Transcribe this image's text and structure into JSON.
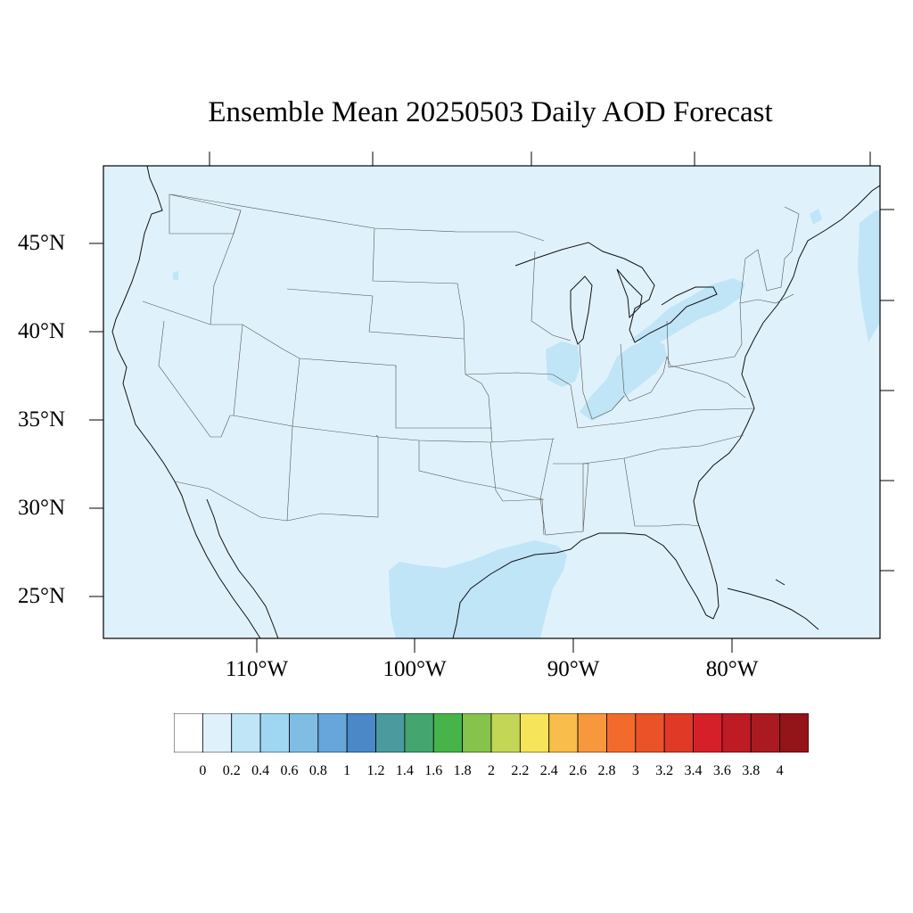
{
  "title": "Ensemble Mean 20250503 Daily AOD Forecast",
  "map": {
    "region": "Continental United States",
    "lon_range": [
      -119,
      -70
    ],
    "lat_range": [
      22.7,
      49.3
    ],
    "lat_ticks": [
      {
        "value": 45,
        "label": "45°N"
      },
      {
        "value": 40,
        "label": "40°N"
      },
      {
        "value": 35,
        "label": "35°N"
      },
      {
        "value": 30,
        "label": "30°N"
      },
      {
        "value": 25,
        "label": "25°N"
      }
    ],
    "lon_ticks": [
      {
        "value": -110,
        "label": "110°W"
      },
      {
        "value": -100,
        "label": "100°W"
      },
      {
        "value": -90,
        "label": "90°W"
      },
      {
        "value": -80,
        "label": "80°W"
      }
    ],
    "background_fill": "#dff2fb",
    "enhanced_fill": "#bfe5f7"
  },
  "colorbar": {
    "colors": [
      "#ffffff",
      "#dff2fb",
      "#bfe5f7",
      "#9fd7f2",
      "#80bde5",
      "#66a6da",
      "#4a88c7",
      "#4b9a9e",
      "#45a56f",
      "#47b44a",
      "#86c34c",
      "#c4d655",
      "#f6e45a",
      "#f8bd4a",
      "#f7983d",
      "#f36b2c",
      "#ea5228",
      "#e03a26",
      "#d62029",
      "#be1b24",
      "#aa1a20",
      "#931519"
    ],
    "labels": [
      "0",
      "0.2",
      "0.4",
      "0.6",
      "0.8",
      "1",
      "1.2",
      "1.4",
      "1.6",
      "1.8",
      "2",
      "2.2",
      "2.4",
      "2.6",
      "2.8",
      "3",
      "3.2",
      "3.4",
      "3.6",
      "3.8",
      "4"
    ]
  }
}
